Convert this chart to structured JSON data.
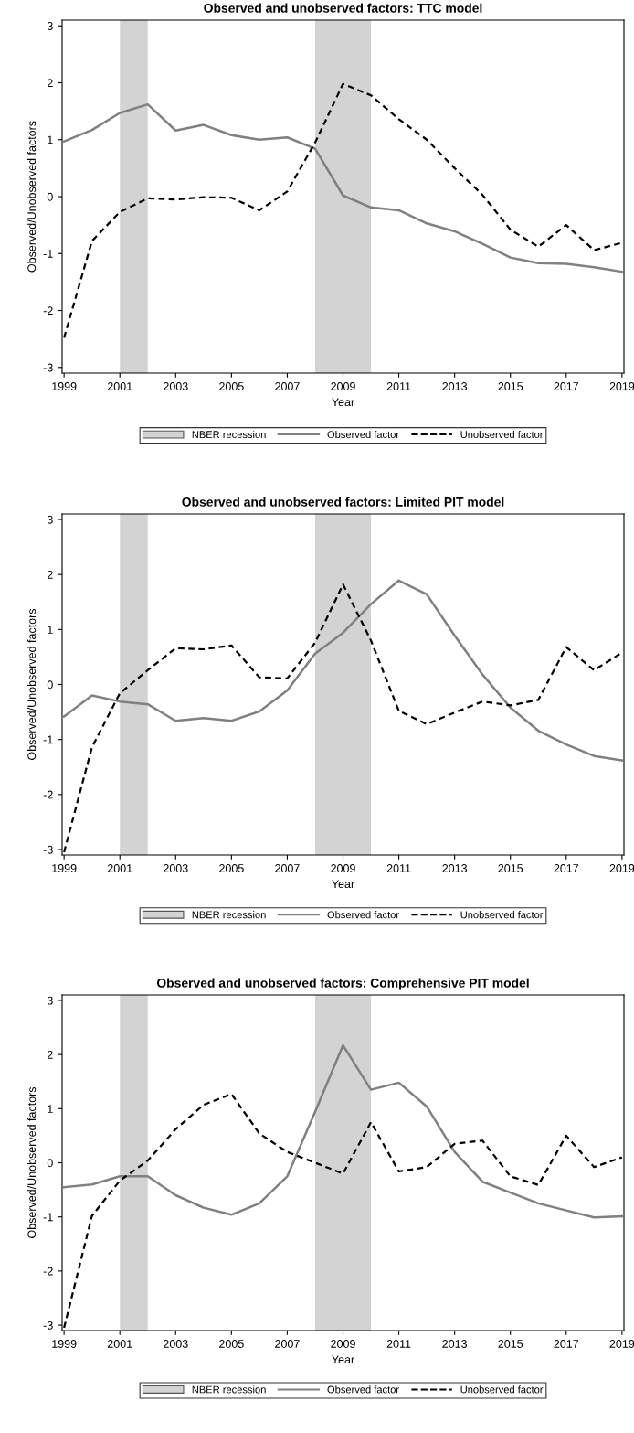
{
  "chart_data": [
    {
      "type": "line",
      "title": "Observed and unobserved factors: TTC model",
      "xlabel": "Year",
      "ylabel": "Observed/Unobserved factors",
      "x": [
        1999,
        2000,
        2001,
        2002,
        2003,
        2004,
        2005,
        2006,
        2007,
        2008,
        2009,
        2010,
        2011,
        2012,
        2013,
        2014,
        2015,
        2016,
        2017,
        2018,
        2019
      ],
      "series": [
        {
          "name": "Observed factor",
          "color": "#808080",
          "line_style": "solid",
          "values": [
            0.97,
            1.17,
            1.47,
            1.62,
            1.16,
            1.26,
            1.08,
            1.0,
            1.04,
            0.84,
            0.02,
            -0.19,
            -0.24,
            -0.47,
            -0.61,
            -0.83,
            -1.07,
            -1.17,
            -1.18,
            -1.24,
            -1.32
          ]
        },
        {
          "name": "Unobserved factor",
          "color": "#000000",
          "line_style": "dashed",
          "values": [
            -2.48,
            -0.78,
            -0.27,
            -0.03,
            -0.05,
            -0.01,
            -0.02,
            -0.24,
            0.09,
            0.95,
            1.98,
            1.78,
            1.36,
            1.0,
            0.5,
            0.03,
            -0.58,
            -0.88,
            -0.5,
            -0.94,
            -0.81
          ]
        }
      ],
      "bands": [
        {
          "axis": "x",
          "from": 2001,
          "to": 2002,
          "label": "NBER recession",
          "color": "#d3d3d3"
        },
        {
          "axis": "x",
          "from": 2008,
          "to": 2010,
          "color": "#d3d3d3"
        }
      ],
      "xlim": [
        1998.93,
        2019.07
      ],
      "ylim": [
        -3.1,
        3.1
      ],
      "xticks": [
        1999,
        2001,
        2003,
        2005,
        2007,
        2009,
        2011,
        2013,
        2015,
        2017,
        2019
      ],
      "yticks": [
        -3,
        -2,
        -1,
        0,
        1,
        2,
        3
      ],
      "legend": "bottom",
      "grid": false
    },
    {
      "type": "line",
      "title": "Observed and unobserved factors: Limited PIT model",
      "xlabel": "Year",
      "ylabel": "Observed/Unobserved factors",
      "x": [
        1999,
        2000,
        2001,
        2002,
        2003,
        2004,
        2005,
        2006,
        2007,
        2008,
        2009,
        2010,
        2011,
        2012,
        2013,
        2014,
        2015,
        2016,
        2017,
        2018,
        2019
      ],
      "series": [
        {
          "name": "Observed factor",
          "color": "#808080",
          "line_style": "solid",
          "values": [
            -0.58,
            -0.2,
            -0.31,
            -0.36,
            -0.66,
            -0.61,
            -0.66,
            -0.49,
            -0.11,
            0.56,
            0.94,
            1.46,
            1.89,
            1.64,
            0.89,
            0.18,
            -0.42,
            -0.84,
            -1.09,
            -1.3,
            -1.38
          ]
        },
        {
          "name": "Unobserved factor",
          "color": "#000000",
          "line_style": "dashed",
          "values": [
            -3.05,
            -1.14,
            -0.16,
            0.26,
            0.66,
            0.64,
            0.71,
            0.13,
            0.11,
            0.76,
            1.82,
            0.8,
            -0.48,
            -0.72,
            -0.51,
            -0.31,
            -0.38,
            -0.28,
            0.68,
            0.26,
            0.58
          ]
        }
      ],
      "bands": [
        {
          "axis": "x",
          "from": 2001,
          "to": 2002,
          "label": "NBER recession",
          "color": "#d3d3d3"
        },
        {
          "axis": "x",
          "from": 2008,
          "to": 2010,
          "color": "#d3d3d3"
        }
      ],
      "xlim": [
        1998.93,
        2019.07
      ],
      "ylim": [
        -3.1,
        3.1
      ],
      "xticks": [
        1999,
        2001,
        2003,
        2005,
        2007,
        2009,
        2011,
        2013,
        2015,
        2017,
        2019
      ],
      "yticks": [
        -3,
        -2,
        -1,
        0,
        1,
        2,
        3
      ],
      "legend": "bottom",
      "grid": false
    },
    {
      "type": "line",
      "title": "Observed and unobserved factors: Comprehensive PIT model",
      "xlabel": "Year",
      "ylabel": "Observed/Unobserved factors",
      "x": [
        1999,
        2000,
        2001,
        2002,
        2003,
        2004,
        2005,
        2006,
        2007,
        2008,
        2009,
        2010,
        2011,
        2012,
        2013,
        2014,
        2015,
        2016,
        2017,
        2018,
        2019
      ],
      "series": [
        {
          "name": "Observed factor",
          "color": "#808080",
          "line_style": "solid",
          "values": [
            -0.45,
            -0.4,
            -0.25,
            -0.25,
            -0.6,
            -0.83,
            -0.96,
            -0.75,
            -0.25,
            0.94,
            2.17,
            1.35,
            1.48,
            1.04,
            0.2,
            -0.35,
            -0.55,
            -0.75,
            -0.88,
            -1.01,
            -0.99
          ]
        },
        {
          "name": "Unobserved factor",
          "color": "#000000",
          "line_style": "dashed",
          "values": [
            -3.05,
            -0.98,
            -0.33,
            0.04,
            0.62,
            1.07,
            1.27,
            0.54,
            0.2,
            0.0,
            -0.2,
            0.75,
            -0.16,
            -0.08,
            0.35,
            0.41,
            -0.25,
            -0.41,
            0.5,
            -0.08,
            0.1
          ]
        }
      ],
      "bands": [
        {
          "axis": "x",
          "from": 2001,
          "to": 2002,
          "label": "NBER recession",
          "color": "#d3d3d3"
        },
        {
          "axis": "x",
          "from": 2008,
          "to": 2010,
          "color": "#d3d3d3"
        }
      ],
      "xlim": [
        1998.93,
        2019.07
      ],
      "ylim": [
        -3.1,
        3.1
      ],
      "xticks": [
        1999,
        2001,
        2003,
        2005,
        2007,
        2009,
        2011,
        2013,
        2015,
        2017,
        2019
      ],
      "yticks": [
        -3,
        -2,
        -1,
        0,
        1,
        2,
        3
      ],
      "legend": "bottom",
      "grid": false
    }
  ]
}
